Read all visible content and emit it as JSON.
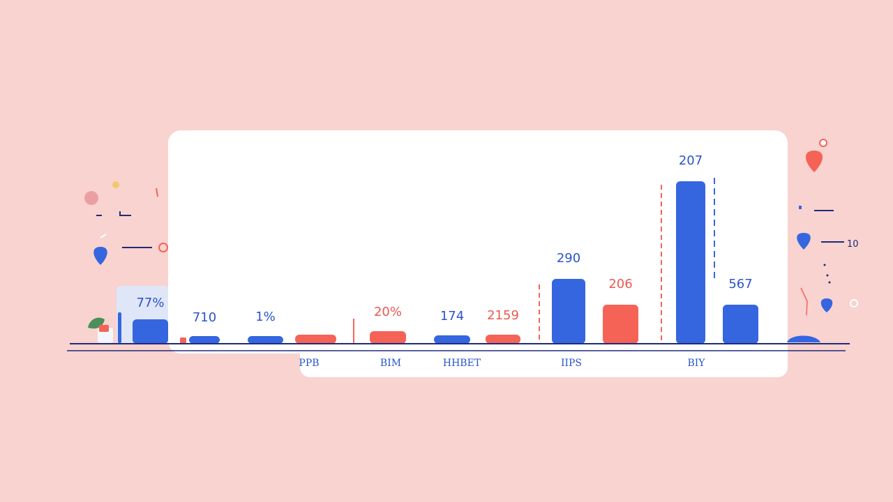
{
  "colors": {
    "background": "#f8d3cf",
    "blue": "#3566e0",
    "red": "#f56357",
    "navy": "#1f2a7a",
    "card": "#ffffff"
  },
  "chart_data": {
    "type": "bar",
    "title": "",
    "xlabel": "",
    "ylabel": "",
    "categories": [
      "PPB",
      "BIM",
      "HHBET",
      "IIPS",
      "BIY"
    ],
    "bars": [
      {
        "value_label": "77%",
        "color": "blue",
        "height_units": 35
      },
      {
        "value_label": "710",
        "color": "blue",
        "height_units": 11
      },
      {
        "value_label": "1%",
        "color": "blue",
        "height_units": 11
      },
      {
        "value_label": "",
        "color": "red",
        "height_units": 13
      },
      {
        "value_label": "20%",
        "color": "red",
        "height_units": 18
      },
      {
        "value_label": "174",
        "color": "blue",
        "height_units": 12
      },
      {
        "value_label": "2159",
        "color": "red",
        "height_units": 13
      },
      {
        "value_label": "290",
        "color": "blue",
        "height_units": 93
      },
      {
        "value_label": "206",
        "color": "red",
        "height_units": 56
      },
      {
        "value_label": "207",
        "color": "blue",
        "height_units": 233
      },
      {
        "value_label": "567",
        "color": "blue",
        "height_units": 56
      }
    ],
    "side_labels": [
      "10"
    ],
    "grid": false,
    "legend": "none"
  }
}
